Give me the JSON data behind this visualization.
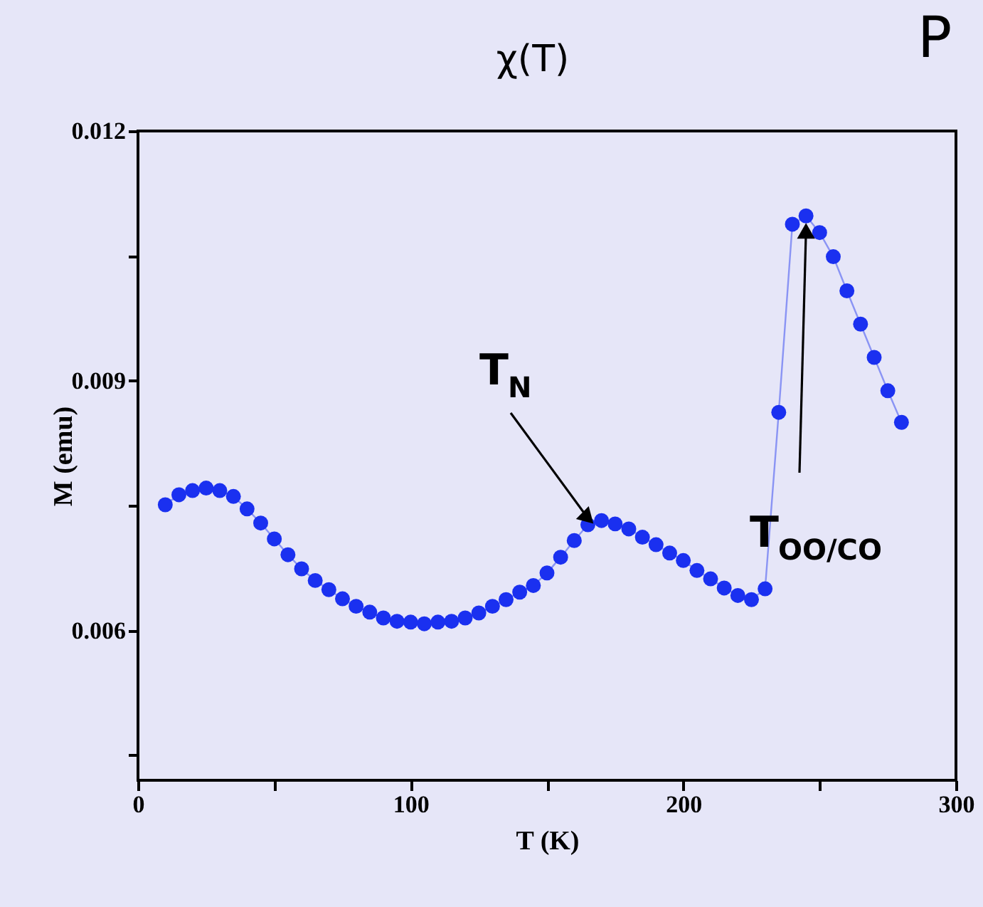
{
  "chart_data": {
    "type": "line",
    "title": "χ(T)",
    "xlabel": "T (K)",
    "ylabel": "M (emu)",
    "x": [
      10,
      15,
      20,
      25,
      30,
      35,
      40,
      45,
      50,
      55,
      60,
      65,
      70,
      75,
      80,
      85,
      90,
      95,
      100,
      105,
      110,
      115,
      120,
      125,
      130,
      135,
      140,
      145,
      150,
      155,
      160,
      165,
      170,
      175,
      180,
      185,
      190,
      195,
      200,
      205,
      210,
      215,
      220,
      225,
      230,
      235,
      240,
      245,
      250,
      255,
      260,
      265,
      270,
      275,
      280
    ],
    "series": [
      {
        "color": "#1a30f0",
        "values": [
          0.00751,
          0.00763,
          0.00768,
          0.00771,
          0.00768,
          0.00761,
          0.00746,
          0.00729,
          0.0071,
          0.00691,
          0.00674,
          0.0066,
          0.00649,
          0.00638,
          0.00629,
          0.00622,
          0.00615,
          0.00611,
          0.0061,
          0.00608,
          0.0061,
          0.00611,
          0.00615,
          0.00621,
          0.00629,
          0.00637,
          0.00646,
          0.00654,
          0.00669,
          0.00688,
          0.00708,
          0.00727,
          0.00732,
          0.00728,
          0.00722,
          0.00712,
          0.00703,
          0.00693,
          0.00684,
          0.00672,
          0.00662,
          0.00651,
          0.00642,
          0.00637,
          0.0065,
          0.00862,
          0.01088,
          0.01098,
          0.01078,
          0.01049,
          0.01008,
          0.00968,
          0.00928,
          0.00888,
          0.0085
        ]
      }
    ],
    "xlim": [
      0,
      300
    ],
    "xticks": [
      0,
      {
        "value": 50,
        "label": null
      },
      100,
      {
        "value": 150,
        "label": null
      },
      200,
      {
        "value": 250,
        "label": null
      },
      300
    ],
    "ylim": [
      0.0042,
      0.012
    ],
    "yticks": [
      {
        "value": 0.0045,
        "label": null
      },
      0.006,
      {
        "value": 0.0075,
        "label": null
      },
      0.009,
      {
        "value": 0.0105,
        "label": null
      },
      0.012
    ],
    "grid": false,
    "marker": "circle",
    "line_style": "solid",
    "annotations": [
      {
        "text": "T$_{N}$",
        "x": 165,
        "y": 0.00735
      },
      {
        "text": "T$_{OO/CO}$",
        "x": 245,
        "y": 0.0108
      },
      "P"
    ]
  }
}
